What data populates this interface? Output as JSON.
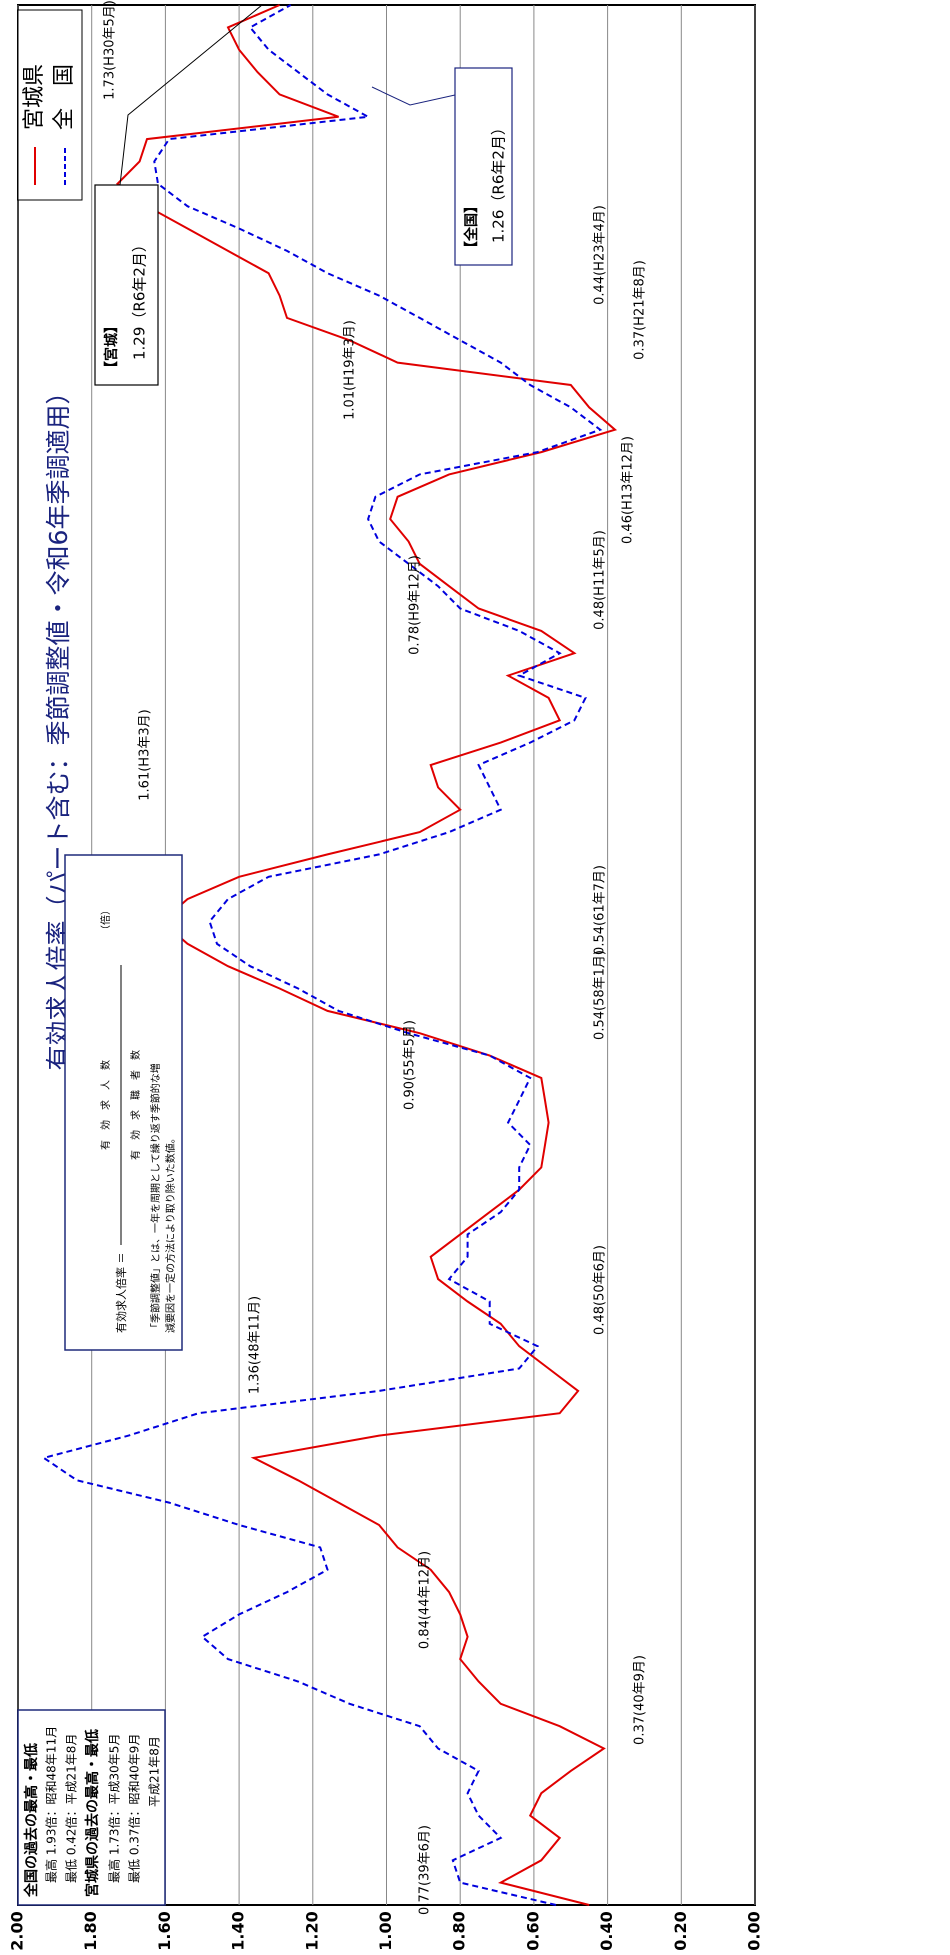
{
  "chart_data": {
    "type": "line",
    "title": "有効求人倍率（パート含む：季節調整値・令和6年季調適用）",
    "ylim": [
      0,
      2
    ],
    "yticks": [
      {
        "value": 0,
        "label": "0.00"
      },
      {
        "value": 0.2,
        "label": "0.20"
      },
      {
        "value": 0.4,
        "label": "0.40"
      },
      {
        "value": 0.6,
        "label": "0.60"
      },
      {
        "value": 0.8,
        "label": "0.80"
      },
      {
        "value": 1,
        "label": "1.00"
      },
      {
        "value": 1.2,
        "label": "1.20"
      },
      {
        "value": 1.4,
        "label": "1.40"
      },
      {
        "value": 1.6,
        "label": "1.60"
      },
      {
        "value": 1.8,
        "label": "1.80"
      },
      {
        "value": 2,
        "label": "2.00"
      }
    ],
    "grid": true,
    "series": [
      {
        "name": "宮城県",
        "color": "#e00000",
        "dashed": false,
        "values": [
          0.45,
          0.69,
          0.58,
          0.53,
          0.61,
          0.58,
          0.5,
          0.41,
          0.53,
          0.69,
          0.75,
          0.8,
          0.78,
          0.8,
          0.83,
          0.88,
          0.97,
          1.02,
          1.13,
          1.24,
          1.36,
          1.02,
          0.53,
          0.48,
          0.56,
          0.64,
          0.69,
          0.78,
          0.86,
          0.88,
          0.8,
          0.72,
          0.64,
          0.58,
          0.57,
          0.56,
          0.57,
          0.58,
          0.72,
          0.91,
          1.16,
          1.29,
          1.43,
          1.54,
          1.61,
          1.54,
          1.4,
          1.16,
          0.91,
          0.8,
          0.86,
          0.88,
          0.69,
          0.53,
          0.56,
          0.67,
          0.49,
          0.58,
          0.75,
          0.83,
          0.91,
          0.94,
          0.99,
          0.97,
          0.83,
          0.58,
          0.38,
          0.45,
          0.5,
          0.97,
          1.1,
          1.27,
          1.29,
          1.32,
          1.43,
          1.54,
          1.65,
          1.73,
          1.67,
          1.65,
          1.13,
          1.29,
          1.35,
          1.4,
          1.43,
          1.29
        ]
      },
      {
        "name": "全　国",
        "color": "#0000dd",
        "dashed": true,
        "values": [
          0.54,
          0.8,
          0.82,
          0.69,
          0.75,
          0.78,
          0.75,
          0.86,
          0.91,
          1.1,
          1.24,
          1.43,
          1.5,
          1.4,
          1.27,
          1.16,
          1.18,
          1.4,
          1.59,
          1.84,
          1.93,
          1.7,
          1.51,
          1.02,
          0.64,
          0.59,
          0.72,
          0.72,
          0.83,
          0.78,
          0.78,
          0.69,
          0.64,
          0.64,
          0.61,
          0.67,
          0.64,
          0.61,
          0.72,
          0.94,
          1.13,
          1.24,
          1.37,
          1.46,
          1.48,
          1.43,
          1.32,
          1.02,
          0.83,
          0.69,
          0.72,
          0.75,
          0.61,
          0.49,
          0.46,
          0.64,
          0.53,
          0.64,
          0.8,
          0.86,
          0.94,
          1.02,
          1.05,
          1.03,
          0.91,
          0.59,
          0.42,
          0.5,
          0.61,
          0.69,
          0.8,
          0.91,
          1.02,
          1.16,
          1.27,
          1.4,
          1.54,
          1.62,
          1.63,
          1.59,
          1.05,
          1.16,
          1.24,
          1.32,
          1.37,
          1.26
        ]
      }
    ],
    "annotations": [
      "0.77(39年6月)",
      "0.37(40年9月)",
      "0.84(44年12月)",
      "1.36(48年11月)",
      "0.48(50年6月)",
      "0.90(55年5月)",
      "0.54(58年1月)",
      "0.54(61年7月)",
      "1.61(H3年3月)",
      "0.78(H9年12月)",
      "0.48(H11年5月)",
      "0.46(H13年12月)",
      "1.01(H19年3月)",
      "0.37(H21年8月)",
      "0.44(H23年4月)",
      "1.73(H30年5月)"
    ],
    "records_box": [
      "全国の過去の最高・最低",
      "最高 1.93倍：昭和48年11月",
      "最低 0.42倍：平成21年8月",
      "宮城県の過去の最高・最低",
      "最高 1.73倍：平成30年5月",
      "最低 0.37倍：昭和40年9月",
      "平成21年8月"
    ],
    "formula": {
      "lhs": "有効求人倍率 ＝",
      "numerator": "有　効　求　人　数",
      "denominator": "有　効　求　職　者　数",
      "unit": "（倍）",
      "note": [
        "「季節調整値」とは、一年を周期として繰り返す季節的な増",
        "減要因を一定の方法により取り除いた数値。"
      ]
    },
    "callouts": [
      {
        "title": "【宮城】",
        "text": "1.29（R6年2月）"
      },
      {
        "title": "【全国】",
        "text": "1.26（R6年2月）"
      }
    ]
  }
}
